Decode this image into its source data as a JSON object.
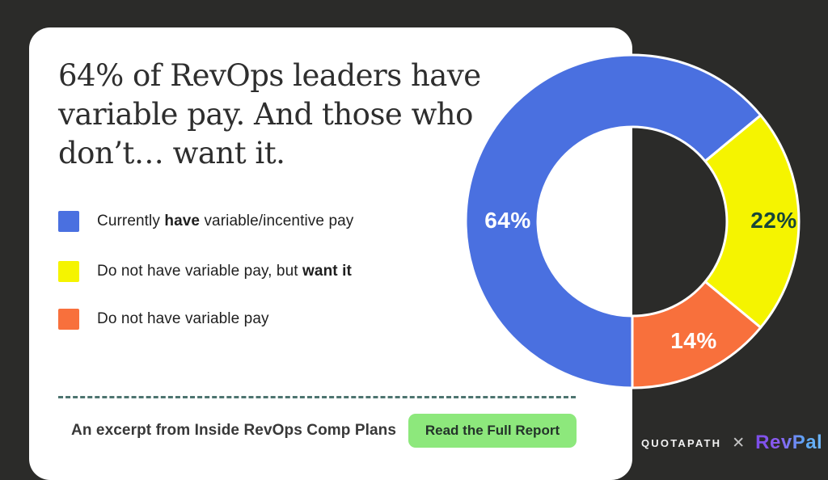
{
  "theme": {
    "background": "#2B2B29",
    "card_background": "#FFFFFF",
    "dashed_line_color": "#4D7470",
    "title_color": "#2E2E2E",
    "text_color": "#1F1F1F"
  },
  "headline": {
    "full_text": "64% of RevOps leaders have variable pay. And those who don’t… want it.",
    "lines": [
      "64% of RevOps leaders have",
      "variable pay. And those who",
      "don’t… want it."
    ]
  },
  "legend": {
    "items": [
      {
        "prefix": "Currently ",
        "bold": "have",
        "suffix": " variable/incentive pay"
      },
      {
        "prefix": "Do not have variable pay, but ",
        "bold": "want it",
        "suffix": ""
      },
      {
        "prefix": "Do not have variable pay",
        "bold": "",
        "suffix": ""
      }
    ]
  },
  "chart_data": {
    "type": "pie",
    "style": "donut",
    "title": "64% of RevOps leaders have variable pay. And those who don’t… want it.",
    "start_angle_deg": 180,
    "direction": "clockwise",
    "inner_radius_ratio": 0.57,
    "separator_color": "#FFFFFF",
    "segments": [
      {
        "label": "Currently have variable/incentive pay",
        "value": 64,
        "display": "64%",
        "color": "#4A70E0",
        "label_color": "#FFFFFF"
      },
      {
        "label": "Do not have variable pay, but want it",
        "value": 22,
        "display": "22%",
        "color": "#F5F400",
        "label_color": "#17463A"
      },
      {
        "label": "Do not have variable pay",
        "value": 14,
        "display": "14%",
        "color": "#F8703C",
        "label_color": "#FFFFFF"
      }
    ]
  },
  "footer": {
    "caption": "An excerpt from Inside RevOps Comp Plans",
    "button_label": "Read the Full Report",
    "button_color": "#8DE87C",
    "button_text_color": "#24332A"
  },
  "branding": {
    "quotapath": "QUOTAPATH",
    "separator": "✕",
    "revpal": "RevPal",
    "revpal_gradient": [
      "#7B4DE8",
      "#5CA8F5"
    ]
  }
}
